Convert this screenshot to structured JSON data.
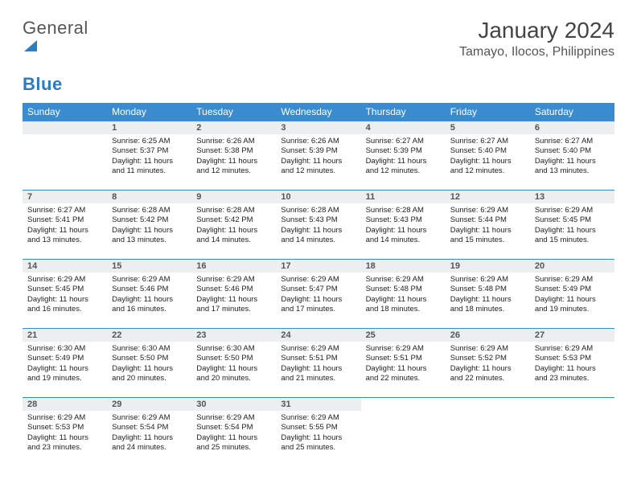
{
  "logo": {
    "word1": "General",
    "word2": "Blue"
  },
  "title": "January 2024",
  "location": "Tamayo, Ilocos, Philippines",
  "colors": {
    "header_bg": "#3b8bd0",
    "header_fg": "#ffffff",
    "daynum_bg": "#eceef0",
    "rule": "#3b8bd0",
    "logo_gray": "#666666",
    "logo_blue": "#2b7cc2"
  },
  "dayHeaders": [
    "Sunday",
    "Monday",
    "Tuesday",
    "Wednesday",
    "Thursday",
    "Friday",
    "Saturday"
  ],
  "startOffset": 1,
  "days": [
    {
      "n": 1,
      "sr": "6:25 AM",
      "ss": "5:37 PM",
      "dl": "11 hours and 11 minutes."
    },
    {
      "n": 2,
      "sr": "6:26 AM",
      "ss": "5:38 PM",
      "dl": "11 hours and 12 minutes."
    },
    {
      "n": 3,
      "sr": "6:26 AM",
      "ss": "5:39 PM",
      "dl": "11 hours and 12 minutes."
    },
    {
      "n": 4,
      "sr": "6:27 AM",
      "ss": "5:39 PM",
      "dl": "11 hours and 12 minutes."
    },
    {
      "n": 5,
      "sr": "6:27 AM",
      "ss": "5:40 PM",
      "dl": "11 hours and 12 minutes."
    },
    {
      "n": 6,
      "sr": "6:27 AM",
      "ss": "5:40 PM",
      "dl": "11 hours and 13 minutes."
    },
    {
      "n": 7,
      "sr": "6:27 AM",
      "ss": "5:41 PM",
      "dl": "11 hours and 13 minutes."
    },
    {
      "n": 8,
      "sr": "6:28 AM",
      "ss": "5:42 PM",
      "dl": "11 hours and 13 minutes."
    },
    {
      "n": 9,
      "sr": "6:28 AM",
      "ss": "5:42 PM",
      "dl": "11 hours and 14 minutes."
    },
    {
      "n": 10,
      "sr": "6:28 AM",
      "ss": "5:43 PM",
      "dl": "11 hours and 14 minutes."
    },
    {
      "n": 11,
      "sr": "6:28 AM",
      "ss": "5:43 PM",
      "dl": "11 hours and 14 minutes."
    },
    {
      "n": 12,
      "sr": "6:29 AM",
      "ss": "5:44 PM",
      "dl": "11 hours and 15 minutes."
    },
    {
      "n": 13,
      "sr": "6:29 AM",
      "ss": "5:45 PM",
      "dl": "11 hours and 15 minutes."
    },
    {
      "n": 14,
      "sr": "6:29 AM",
      "ss": "5:45 PM",
      "dl": "11 hours and 16 minutes."
    },
    {
      "n": 15,
      "sr": "6:29 AM",
      "ss": "5:46 PM",
      "dl": "11 hours and 16 minutes."
    },
    {
      "n": 16,
      "sr": "6:29 AM",
      "ss": "5:46 PM",
      "dl": "11 hours and 17 minutes."
    },
    {
      "n": 17,
      "sr": "6:29 AM",
      "ss": "5:47 PM",
      "dl": "11 hours and 17 minutes."
    },
    {
      "n": 18,
      "sr": "6:29 AM",
      "ss": "5:48 PM",
      "dl": "11 hours and 18 minutes."
    },
    {
      "n": 19,
      "sr": "6:29 AM",
      "ss": "5:48 PM",
      "dl": "11 hours and 18 minutes."
    },
    {
      "n": 20,
      "sr": "6:29 AM",
      "ss": "5:49 PM",
      "dl": "11 hours and 19 minutes."
    },
    {
      "n": 21,
      "sr": "6:30 AM",
      "ss": "5:49 PM",
      "dl": "11 hours and 19 minutes."
    },
    {
      "n": 22,
      "sr": "6:30 AM",
      "ss": "5:50 PM",
      "dl": "11 hours and 20 minutes."
    },
    {
      "n": 23,
      "sr": "6:30 AM",
      "ss": "5:50 PM",
      "dl": "11 hours and 20 minutes."
    },
    {
      "n": 24,
      "sr": "6:29 AM",
      "ss": "5:51 PM",
      "dl": "11 hours and 21 minutes."
    },
    {
      "n": 25,
      "sr": "6:29 AM",
      "ss": "5:51 PM",
      "dl": "11 hours and 22 minutes."
    },
    {
      "n": 26,
      "sr": "6:29 AM",
      "ss": "5:52 PM",
      "dl": "11 hours and 22 minutes."
    },
    {
      "n": 27,
      "sr": "6:29 AM",
      "ss": "5:53 PM",
      "dl": "11 hours and 23 minutes."
    },
    {
      "n": 28,
      "sr": "6:29 AM",
      "ss": "5:53 PM",
      "dl": "11 hours and 23 minutes."
    },
    {
      "n": 29,
      "sr": "6:29 AM",
      "ss": "5:54 PM",
      "dl": "11 hours and 24 minutes."
    },
    {
      "n": 30,
      "sr": "6:29 AM",
      "ss": "5:54 PM",
      "dl": "11 hours and 25 minutes."
    },
    {
      "n": 31,
      "sr": "6:29 AM",
      "ss": "5:55 PM",
      "dl": "11 hours and 25 minutes."
    }
  ],
  "labels": {
    "sunrise": "Sunrise:",
    "sunset": "Sunset:",
    "daylight": "Daylight:"
  }
}
